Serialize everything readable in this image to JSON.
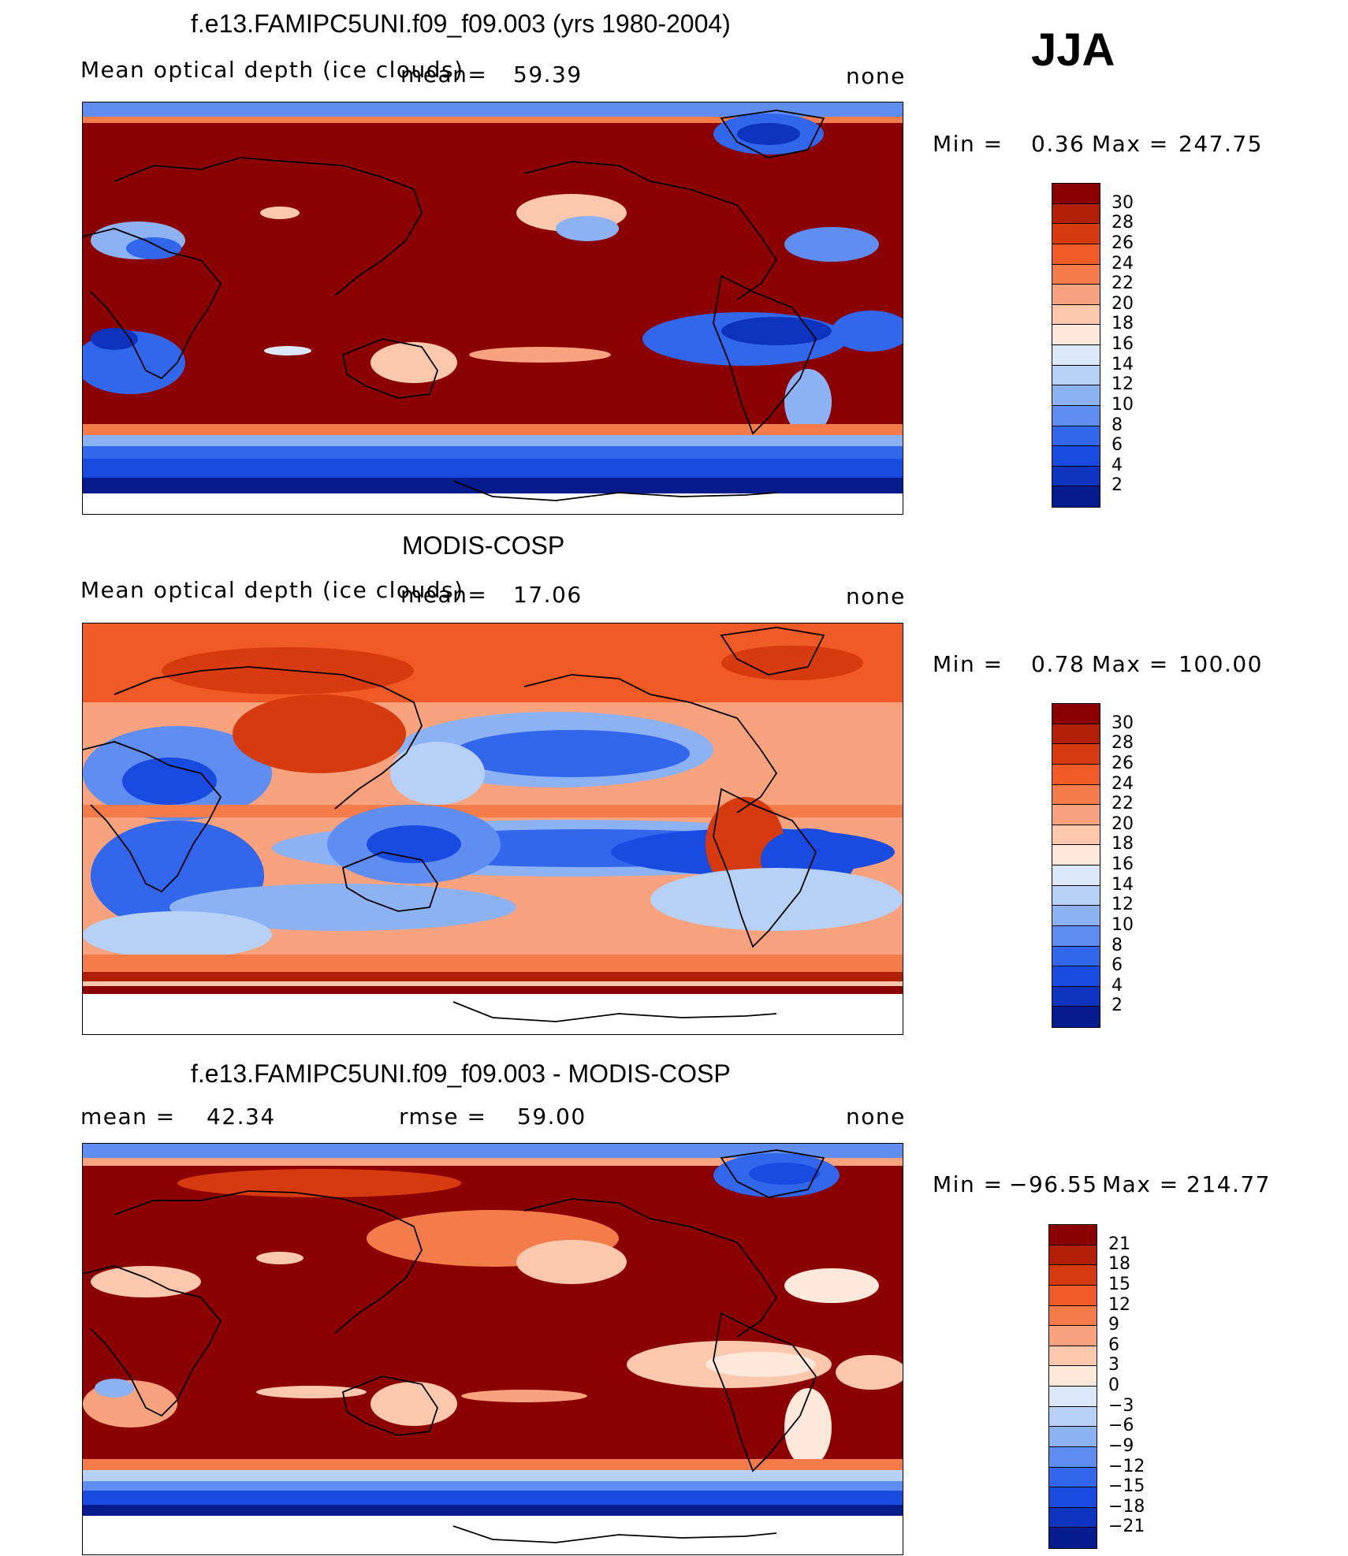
{
  "season": "JJA",
  "panels": [
    {
      "title": "f.e13.FAMIPC5UNI.f09_f09.003 (yrs 1980-2004)",
      "variable": "Mean optical depth (ice clouds)",
      "mean_label": "mean=",
      "mean_value": "59.39",
      "units": "none",
      "min_label": "Min =",
      "min_value": "0.36",
      "max_label": "Max =",
      "max_value": "247.75",
      "colorbar": {
        "ticks": [
          "30",
          "28",
          "26",
          "24",
          "22",
          "20",
          "18",
          "16",
          "14",
          "12",
          "10",
          "8",
          "6",
          "4",
          "2"
        ],
        "colors": [
          "#8b0000",
          "#b01f06",
          "#d63a0f",
          "#ef5a26",
          "#f47c4a",
          "#f8a27e",
          "#fbc7ad",
          "#fde8da",
          "#dbe8f8",
          "#b6d0f6",
          "#8cb2f3",
          "#5f8df0",
          "#3267ec",
          "#1a4be0",
          "#0d33bf",
          "#061b8e"
        ]
      }
    },
    {
      "title": "MODIS-COSP",
      "variable": "Mean optical depth (ice clouds)",
      "mean_label": "mean=",
      "mean_value": "17.06",
      "units": "none",
      "min_label": "Min =",
      "min_value": "0.78",
      "max_label": "Max =",
      "max_value": "100.00",
      "colorbar": {
        "ticks": [
          "30",
          "28",
          "26",
          "24",
          "22",
          "20",
          "18",
          "16",
          "14",
          "12",
          "10",
          "8",
          "6",
          "4",
          "2"
        ],
        "colors": [
          "#8b0000",
          "#b01f06",
          "#d63a0f",
          "#ef5a26",
          "#f47c4a",
          "#f8a27e",
          "#fbc7ad",
          "#fde8da",
          "#dbe8f8",
          "#b6d0f6",
          "#8cb2f3",
          "#5f8df0",
          "#3267ec",
          "#1a4be0",
          "#0d33bf",
          "#061b8e"
        ]
      }
    },
    {
      "title": "f.e13.FAMIPC5UNI.f09_f09.003 - MODIS-COSP",
      "mean_label": "mean =",
      "mean_value": "42.34",
      "rmse_label": "rmse =",
      "rmse_value": "59.00",
      "units": "none",
      "min_label": "Min =",
      "min_value": "−96.55",
      "max_label": "Max =",
      "max_value": "214.77",
      "colorbar": {
        "ticks": [
          "21",
          "18",
          "15",
          "12",
          "9",
          "6",
          "3",
          "0",
          "−3",
          "−6",
          "−9",
          "−12",
          "−15",
          "−18",
          "−21"
        ],
        "colors": [
          "#8b0000",
          "#b01f06",
          "#d63a0f",
          "#ef5a26",
          "#f47c4a",
          "#f8a27e",
          "#fbc7ad",
          "#fde8da",
          "#dbe8f8",
          "#b6d0f6",
          "#8cb2f3",
          "#5f8df0",
          "#3267ec",
          "#1a4be0",
          "#0d33bf",
          "#061b8e"
        ]
      }
    }
  ]
}
